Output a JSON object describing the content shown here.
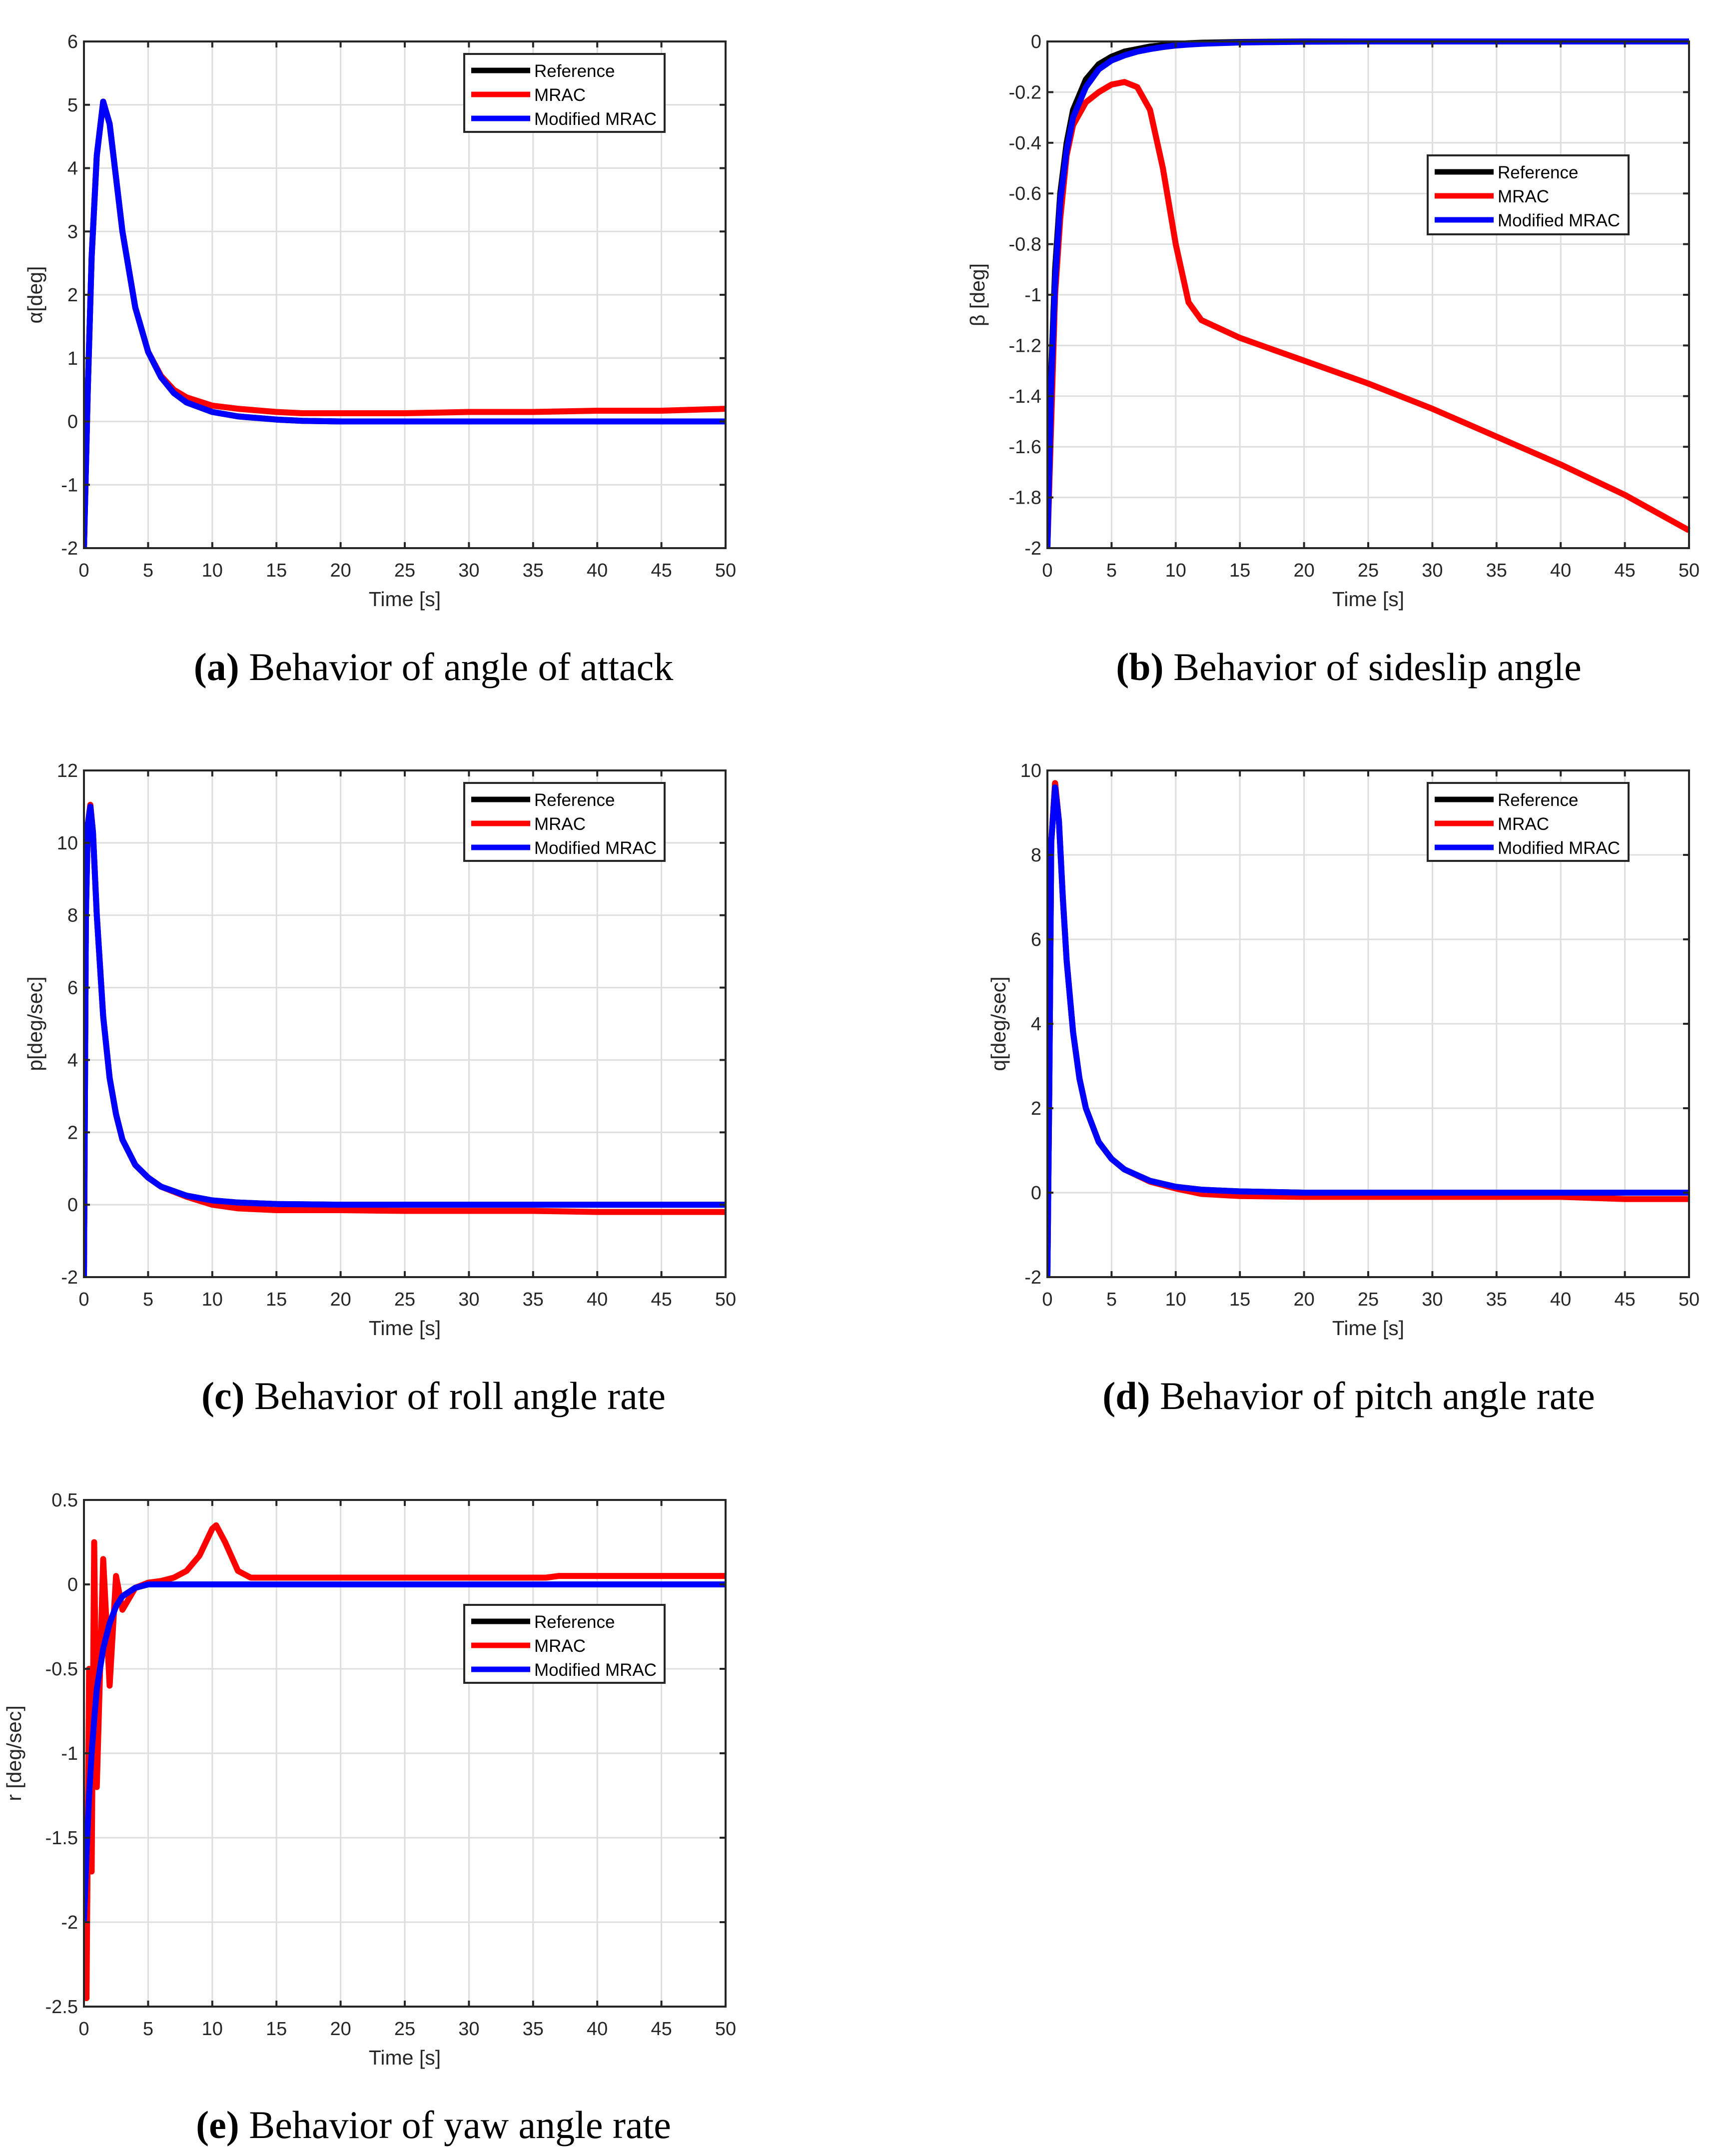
{
  "figure": {
    "legend_entries": [
      {
        "label": "Reference",
        "color": "#000000"
      },
      {
        "label": "MRAC",
        "color": "#ff0000"
      },
      {
        "label": "Modified MRAC",
        "color": "#0000ff"
      }
    ],
    "colors": {
      "reference": "#000000",
      "mrac": "#ff0000",
      "modified_mrac": "#0000ff",
      "grid": "#dedede",
      "axes": "#262626"
    }
  },
  "panels": [
    {
      "id": "a",
      "caption_tag": "(a)",
      "caption_text": " Behavior of angle of attack",
      "ylabel": "α[deg]",
      "xlabel": "Time [s]"
    },
    {
      "id": "b",
      "caption_tag": "(b)",
      "caption_text": " Behavior of sideslip angle",
      "ylabel": "β [deg]",
      "xlabel": "Time [s]"
    },
    {
      "id": "c",
      "caption_tag": "(c)",
      "caption_text": " Behavior of roll angle rate",
      "ylabel": "p[deg/sec]",
      "xlabel": "Time [s]"
    },
    {
      "id": "d",
      "caption_tag": "(d)",
      "caption_text": " Behavior of pitch angle rate",
      "ylabel": "q[deg/sec]",
      "xlabel": "Time [s]"
    },
    {
      "id": "e",
      "caption_tag": "(e)",
      "caption_text": " Behavior of yaw angle rate",
      "ylabel": "r [deg/sec]",
      "xlabel": "Time [s]"
    }
  ],
  "chart_data": [
    {
      "type": "line",
      "title": "(a) Behavior of angle of attack",
      "xlabel": "Time [s]",
      "ylabel": "α[deg]",
      "xlim": [
        0,
        50
      ],
      "ylim": [
        -2,
        6
      ],
      "xticks": [
        0,
        5,
        10,
        15,
        20,
        25,
        30,
        35,
        40,
        45,
        50
      ],
      "yticks": [
        -2,
        -1,
        0,
        1,
        2,
        3,
        4,
        5,
        6
      ],
      "grid": true,
      "legend_position": "upper right",
      "x": [
        0,
        0.3,
        0.6,
        1.0,
        1.5,
        2.0,
        3.0,
        4.0,
        5.0,
        6.0,
        7.0,
        8.0,
        10.0,
        12.0,
        15.0,
        17.0,
        20.0,
        25.0,
        30.0,
        35.0,
        40.0,
        45.0,
        50.0
      ],
      "series": [
        {
          "name": "Reference",
          "values": [
            -2.0,
            0.5,
            2.6,
            4.2,
            5.05,
            4.7,
            3.0,
            1.8,
            1.1,
            0.7,
            0.45,
            0.3,
            0.15,
            0.08,
            0.03,
            0.01,
            0.0,
            0.0,
            0.0,
            0.0,
            0.0,
            0.0,
            0.0
          ]
        },
        {
          "name": "MRAC",
          "values": [
            -2.0,
            0.5,
            2.6,
            4.2,
            5.05,
            4.7,
            3.0,
            1.8,
            1.1,
            0.72,
            0.5,
            0.38,
            0.25,
            0.2,
            0.15,
            0.13,
            0.13,
            0.13,
            0.15,
            0.15,
            0.17,
            0.17,
            0.2
          ]
        },
        {
          "name": "Modified MRAC",
          "values": [
            -2.0,
            0.5,
            2.6,
            4.2,
            5.05,
            4.7,
            3.0,
            1.8,
            1.1,
            0.7,
            0.45,
            0.3,
            0.15,
            0.08,
            0.03,
            0.01,
            0.0,
            0.0,
            0.0,
            0.0,
            0.0,
            0.0,
            0.0
          ]
        }
      ]
    },
    {
      "type": "line",
      "title": "(b) Behavior of sideslip angle",
      "xlabel": "Time [s]",
      "ylabel": "β [deg]",
      "xlim": [
        0,
        50
      ],
      "ylim": [
        -2,
        0
      ],
      "xticks": [
        0,
        5,
        10,
        15,
        20,
        25,
        30,
        35,
        40,
        45,
        50
      ],
      "yticks": [
        -2,
        -1.8,
        -1.6,
        -1.4,
        -1.2,
        -1,
        -0.8,
        -0.6,
        -0.4,
        -0.2,
        0
      ],
      "grid": true,
      "legend_position": "center right",
      "x": [
        0,
        0.3,
        0.6,
        1.0,
        1.5,
        2.0,
        3.0,
        4.0,
        5.0,
        6.0,
        7.0,
        8.0,
        9.0,
        10.0,
        11.0,
        12.0,
        15.0,
        20.0,
        25.0,
        30.0,
        35.0,
        40.0,
        45.0,
        50.0
      ],
      "series": [
        {
          "name": "Reference",
          "values": [
            -2.0,
            -1.3,
            -0.9,
            -0.6,
            -0.4,
            -0.27,
            -0.15,
            -0.09,
            -0.06,
            -0.04,
            -0.03,
            -0.02,
            -0.015,
            -0.01,
            -0.007,
            -0.005,
            -0.002,
            0.0,
            0.0,
            0.0,
            0.0,
            0.0,
            0.0,
            0.0
          ]
        },
        {
          "name": "MRAC",
          "values": [
            -2.0,
            -1.5,
            -1.0,
            -0.7,
            -0.45,
            -0.33,
            -0.24,
            -0.2,
            -0.17,
            -0.16,
            -0.18,
            -0.27,
            -0.5,
            -0.8,
            -1.03,
            -1.1,
            -1.17,
            -1.26,
            -1.35,
            -1.45,
            -1.56,
            -1.67,
            -1.79,
            -1.93
          ]
        },
        {
          "name": "Modified MRAC",
          "values": [
            -2.0,
            -1.35,
            -0.95,
            -0.63,
            -0.43,
            -0.3,
            -0.18,
            -0.11,
            -0.075,
            -0.055,
            -0.04,
            -0.03,
            -0.022,
            -0.016,
            -0.012,
            -0.009,
            -0.004,
            -0.001,
            0.0,
            0.0,
            0.0,
            0.0,
            0.0,
            0.0
          ]
        }
      ]
    },
    {
      "type": "line",
      "title": "(c) Behavior of roll angle rate",
      "xlabel": "Time [s]",
      "ylabel": "p[deg/sec]",
      "xlim": [
        0,
        50
      ],
      "ylim": [
        -2,
        12
      ],
      "xticks": [
        0,
        5,
        10,
        15,
        20,
        25,
        30,
        35,
        40,
        45,
        50
      ],
      "yticks": [
        -2,
        0,
        2,
        4,
        6,
        8,
        10,
        12
      ],
      "grid": true,
      "legend_position": "upper right",
      "x": [
        0,
        0.15,
        0.3,
        0.5,
        0.7,
        1.0,
        1.5,
        2.0,
        2.5,
        3.0,
        4.0,
        5.0,
        6.0,
        8.0,
        10.0,
        12.0,
        15.0,
        20.0,
        25.0,
        30.0,
        35.0,
        40.0,
        45.0,
        50.0
      ],
      "series": [
        {
          "name": "Reference",
          "values": [
            -2.0,
            8.0,
            10.5,
            11.05,
            10.3,
            8.0,
            5.2,
            3.5,
            2.5,
            1.8,
            1.1,
            0.75,
            0.5,
            0.25,
            0.12,
            0.06,
            0.02,
            0.0,
            0.0,
            0.0,
            0.0,
            0.0,
            0.0,
            0.0
          ]
        },
        {
          "name": "MRAC",
          "values": [
            -2.0,
            8.0,
            10.5,
            11.05,
            10.3,
            8.0,
            5.2,
            3.5,
            2.5,
            1.8,
            1.1,
            0.75,
            0.5,
            0.22,
            0.0,
            -0.1,
            -0.15,
            -0.15,
            -0.17,
            -0.17,
            -0.17,
            -0.2,
            -0.2,
            -0.2
          ]
        },
        {
          "name": "Modified MRAC",
          "values": [
            -2.0,
            8.0,
            10.5,
            11.0,
            10.3,
            8.0,
            5.2,
            3.5,
            2.5,
            1.8,
            1.1,
            0.75,
            0.5,
            0.25,
            0.12,
            0.06,
            0.02,
            0.0,
            0.0,
            0.0,
            0.0,
            0.0,
            0.0,
            0.0
          ]
        }
      ]
    },
    {
      "type": "line",
      "title": "(d) Behavior of pitch angle rate",
      "xlabel": "Time [s]",
      "ylabel": "q[deg/sec]",
      "xlim": [
        0,
        50
      ],
      "ylim": [
        -2,
        10
      ],
      "xticks": [
        0,
        5,
        10,
        15,
        20,
        25,
        30,
        35,
        40,
        45,
        50
      ],
      "yticks": [
        -2,
        0,
        2,
        4,
        6,
        8,
        10
      ],
      "grid": true,
      "legend_position": "upper right",
      "x": [
        0,
        0.15,
        0.3,
        0.6,
        0.9,
        1.2,
        1.5,
        2.0,
        2.5,
        3.0,
        4.0,
        5.0,
        6.0,
        8.0,
        10.0,
        12.0,
        15.0,
        20.0,
        25.0,
        30.0,
        35.0,
        40.0,
        45.0,
        50.0
      ],
      "series": [
        {
          "name": "Reference",
          "values": [
            -2.0,
            2.6,
            8.3,
            9.7,
            8.8,
            7.0,
            5.5,
            3.8,
            2.7,
            2.0,
            1.2,
            0.8,
            0.55,
            0.28,
            0.14,
            0.07,
            0.03,
            0.0,
            0.0,
            0.0,
            0.0,
            0.0,
            0.0,
            0.0
          ]
        },
        {
          "name": "MRAC",
          "values": [
            -2.0,
            2.6,
            8.3,
            9.7,
            8.8,
            7.0,
            5.5,
            3.8,
            2.7,
            2.0,
            1.2,
            0.8,
            0.55,
            0.26,
            0.1,
            -0.03,
            -0.08,
            -0.1,
            -0.1,
            -0.1,
            -0.1,
            -0.1,
            -0.15,
            -0.15
          ]
        },
        {
          "name": "Modified MRAC",
          "values": [
            -2.0,
            2.6,
            8.3,
            9.6,
            8.8,
            7.0,
            5.5,
            3.8,
            2.7,
            2.0,
            1.2,
            0.8,
            0.55,
            0.28,
            0.14,
            0.07,
            0.03,
            0.0,
            0.0,
            0.0,
            0.0,
            0.0,
            0.0,
            0.0
          ]
        }
      ]
    },
    {
      "type": "line",
      "title": "(e) Behavior of yaw angle rate",
      "xlabel": "Time [s]",
      "ylabel": "r [deg/sec]",
      "xlim": [
        0,
        50
      ],
      "ylim": [
        -2.5,
        0.5
      ],
      "xticks": [
        0,
        5,
        10,
        15,
        20,
        25,
        30,
        35,
        40,
        45,
        50
      ],
      "yticks": [
        -2.5,
        -2,
        -1.5,
        -1,
        -0.5,
        0,
        0.5
      ],
      "grid": true,
      "legend_position": "center right",
      "x": [
        0,
        0.2,
        0.4,
        0.6,
        0.8,
        1.0,
        1.5,
        2.0,
        2.5,
        3.0,
        4.0,
        5.0,
        6.0,
        7.0,
        8.0,
        9.0,
        10.0,
        10.3,
        11.0,
        12.0,
        13.0,
        15.0,
        20.0,
        30.0,
        36.0,
        37.0,
        45.0,
        50.0
      ],
      "series": [
        {
          "name": "Reference",
          "values": [
            -2.0,
            -1.6,
            -1.25,
            -1.0,
            -0.8,
            -0.62,
            -0.38,
            -0.23,
            -0.13,
            -0.07,
            -0.02,
            0.0,
            0.0,
            0.0,
            0.0,
            0.0,
            0.0,
            0.0,
            0.0,
            0.0,
            0.0,
            0.0,
            0.0,
            0.0,
            0.0,
            0.0,
            0.0,
            0.0
          ]
        },
        {
          "name": "MRAC",
          "values": [
            -2.0,
            -2.45,
            -0.5,
            -1.7,
            0.25,
            -1.2,
            0.15,
            -0.6,
            0.05,
            -0.15,
            -0.02,
            0.01,
            0.02,
            0.04,
            0.08,
            0.17,
            0.33,
            0.35,
            0.25,
            0.08,
            0.04,
            0.04,
            0.04,
            0.04,
            0.04,
            0.05,
            0.05,
            0.05
          ]
        },
        {
          "name": "Modified MRAC",
          "values": [
            -2.0,
            -1.6,
            -1.25,
            -1.0,
            -0.8,
            -0.62,
            -0.38,
            -0.23,
            -0.13,
            -0.07,
            -0.02,
            0.0,
            0.0,
            0.0,
            0.0,
            0.0,
            0.0,
            0.0,
            0.0,
            0.0,
            0.0,
            0.0,
            0.0,
            0.0,
            0.0,
            0.0,
            0.0,
            0.0
          ]
        }
      ]
    }
  ]
}
